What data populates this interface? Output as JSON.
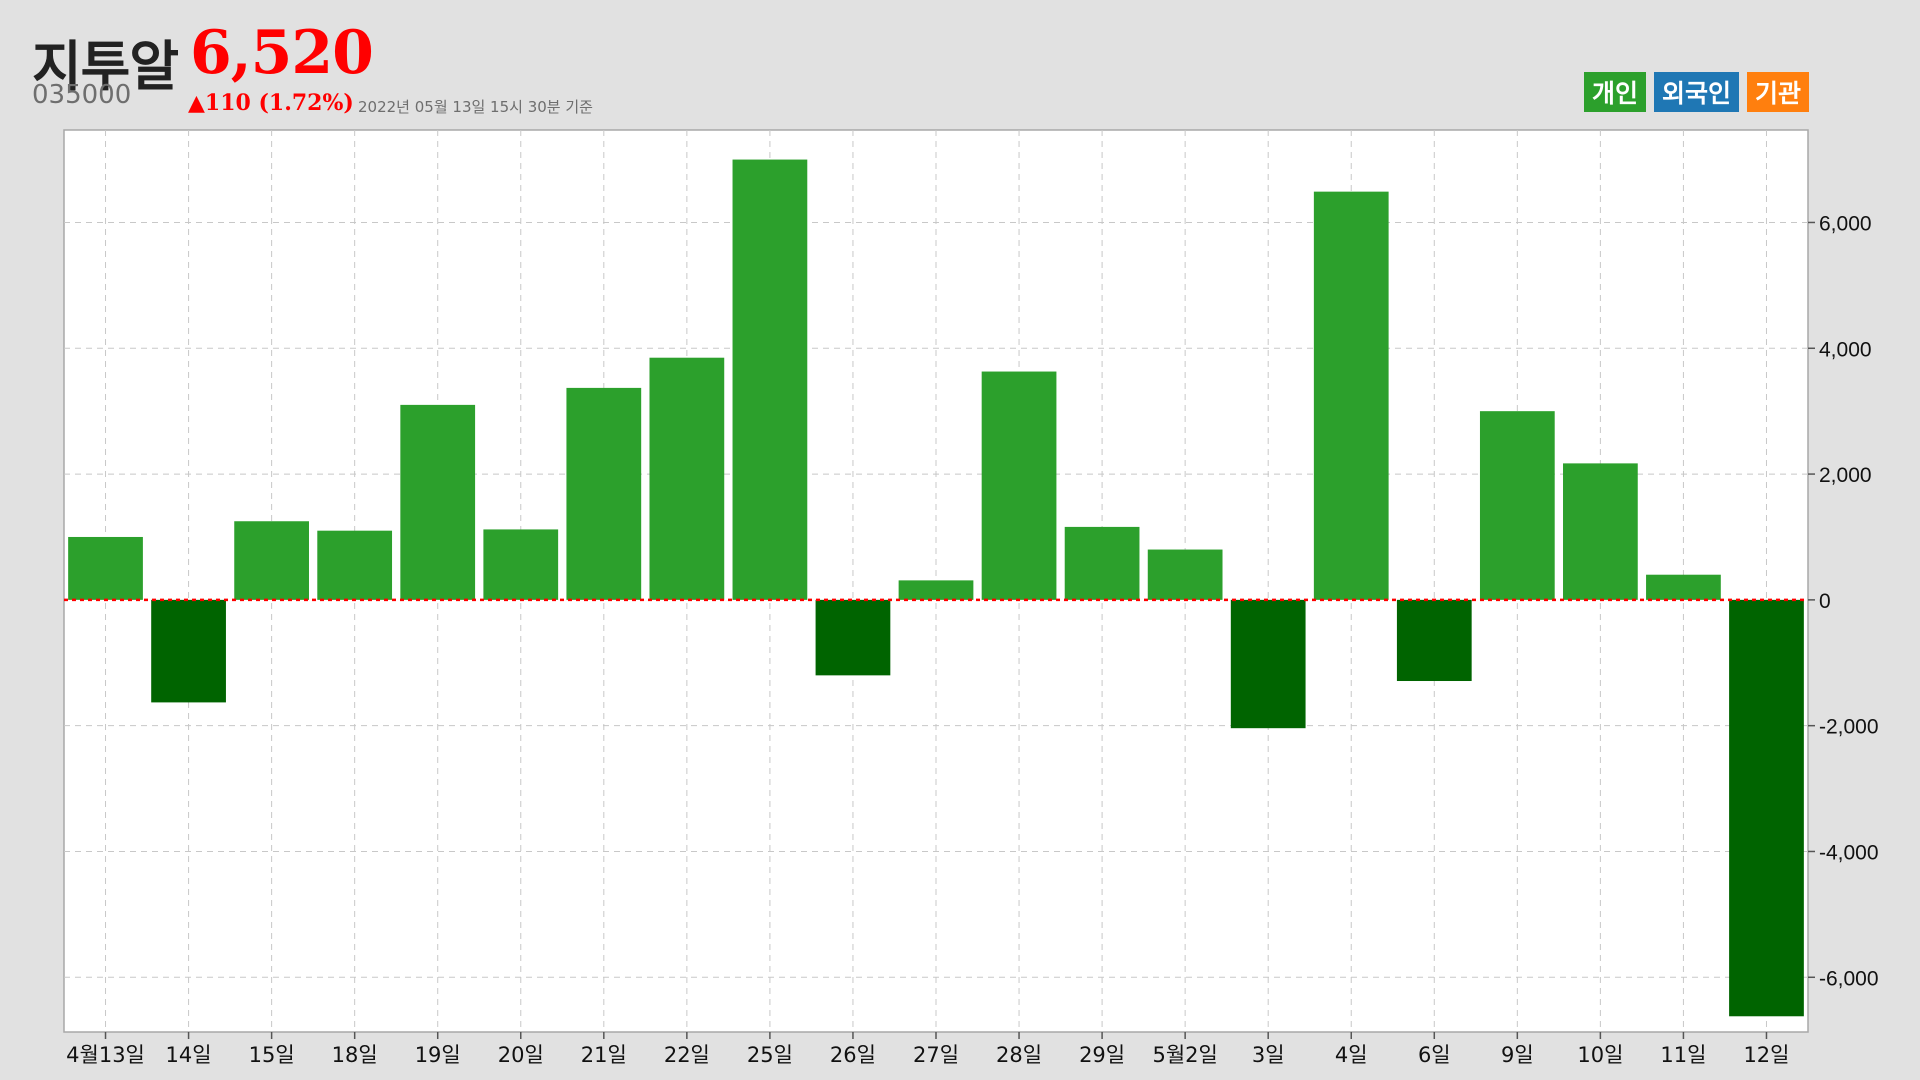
{
  "header": {
    "title": "지투알",
    "price": "6,520",
    "code": "035000",
    "change": "▲110 (1.72%)",
    "asof": "2022년 05월 13일 15시 30분 기준"
  },
  "legend": [
    {
      "label": "개인",
      "color": "#2ca02c"
    },
    {
      "label": "외국인",
      "color": "#1f77b4"
    },
    {
      "label": "기관",
      "color": "#ff7f0e"
    }
  ],
  "colors": {
    "positive": "#2ca02c",
    "negative": "#006400",
    "zero_line": "#ff0000",
    "grid": "#c8c8c8"
  },
  "chart_data": {
    "type": "bar",
    "title": "",
    "xlabel": "",
    "ylabel": "",
    "categories": [
      "4월13일",
      "14일",
      "15일",
      "18일",
      "19일",
      "20일",
      "21일",
      "22일",
      "25일",
      "26일",
      "27일",
      "28일",
      "29일",
      "5월2일",
      "3일",
      "4일",
      "6일",
      "9일",
      "10일",
      "11일",
      "12일"
    ],
    "series": [
      {
        "values": [
          1000,
          -1630,
          1250,
          1100,
          3100,
          1120,
          3370,
          3850,
          7000,
          -1200,
          310,
          3630,
          1160,
          800,
          -2040,
          6490,
          -1290,
          3000,
          2170,
          400,
          -6620
        ]
      }
    ],
    "ylim": [
      -6870,
      7470
    ],
    "yticks": [
      -6000,
      -4000,
      -2000,
      0,
      2000,
      4000,
      6000
    ],
    "ytick_labels": [
      "-6,000",
      "-4,000",
      "-2,000",
      "0",
      "2,000",
      "4,000",
      "6,000"
    ],
    "grid": true,
    "y_axis_position": "right"
  }
}
